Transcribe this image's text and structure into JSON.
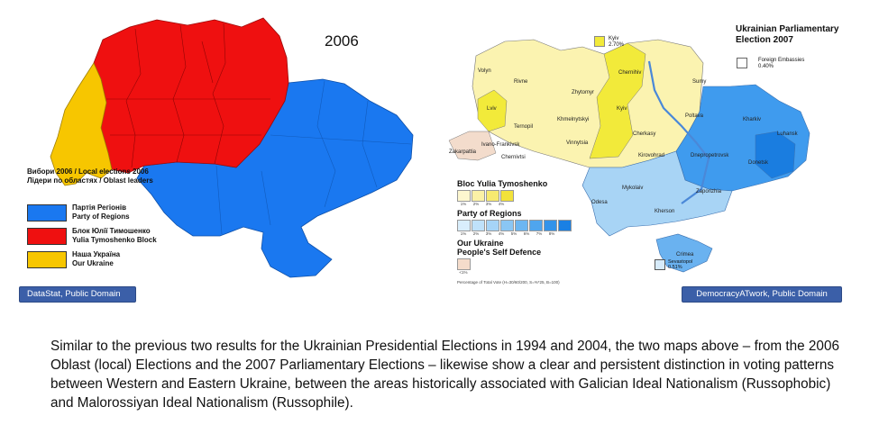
{
  "left_map": {
    "year": "2006",
    "legend_title_1": "Вибори 2006 / Local elections 2006",
    "legend_title_2": "Лідери по областях / Oblast leaders",
    "legend_items": [
      {
        "label_1": "Партія Регіонів",
        "label_2": "Party of Regions",
        "color": "#1a78f0"
      },
      {
        "label_1": "Блок Юлії Тимошенко",
        "label_2": "Yulia Tymoshenko Block",
        "color": "#ef1010"
      },
      {
        "label_1": "Наша Україна",
        "label_2": "Our Ukraine",
        "color": "#f7c600"
      }
    ],
    "credit": "DataStat, Public Domain"
  },
  "right_map": {
    "title": "Ukrainian Parliamentary Election 2007",
    "foreign_embassies": "Foreign Embassies",
    "foreign_embassies_pct": "0.40%",
    "kyiv_label": "Kyiv",
    "kyiv_pct": "2.70%",
    "sevastopol_label": "Sevastopol",
    "sevastopol_pct": "0.51%",
    "regions": [
      "Volyn",
      "Rivne",
      "Zhytomyr",
      "Chernihiv",
      "Sumy",
      "Lviv",
      "Ternopil",
      "Khmelnytskyi",
      "Kyiv",
      "Poltava",
      "Kharkiv",
      "Luhansk",
      "Ivano-Frankivsk",
      "Zakarpattia",
      "Chernivtsi",
      "Vinnytsia",
      "Cherkasy",
      "Kirovohrad",
      "Dnepropetrovsk",
      "Donetsk",
      "Zaporizhia",
      "Mykolaiv",
      "Odesa",
      "Kherson",
      "Crimea"
    ],
    "legend_byut": "Bloc Yulia Tymoshenko",
    "byut_steps": [
      "1%",
      "2%",
      "3%",
      "4%"
    ],
    "legend_por": "Party of Regions",
    "por_steps": [
      "1%",
      "2%",
      "3%",
      "4%",
      "5%",
      "6%",
      "7%",
      "8%"
    ],
    "legend_ou_1": "Our Ukraine",
    "legend_ou_2": "People's Self Defence",
    "ou_step": "<1%",
    "footnote": "Percentage of Total Vote (H=30/60/200, S=%*25, B=100)",
    "credit": "DemocracyATwork, Public Domain"
  },
  "caption": "Similar to the previous two results for the Ukrainian Presidential Elections in 1994 and 2004, the two maps above – from the 2006 Oblast (local) Elections and the 2007 Parliamentary Elections – likewise show a clear and persistent distinction in voting patterns between Western and Eastern Ukraine, between the areas historically associated with Galician Ideal Nationalism (Russophobic) and Malorossiyan Ideal Nationalism (Russophile)."
}
